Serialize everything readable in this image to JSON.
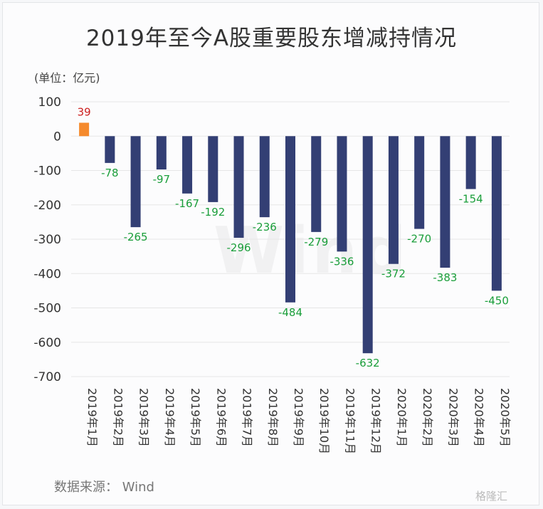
{
  "title": "2019年至今A股重要股东增减持情况",
  "unit_label": "(单位：亿元)",
  "source_label": "数据来源：   Wind",
  "watermark": "Wind",
  "brand": "格隆汇",
  "colors": {
    "positive": "#f58a2c",
    "negative": "#333f74",
    "positive_label": "#cc1f1f",
    "negative_label": "#1a9e3a",
    "grid": "#e6e6e6",
    "axis_text": "#333333"
  },
  "chart_data": {
    "type": "bar",
    "title": "2019年至今A股重要股东增减持情况",
    "ylabel": "(单位：亿元)",
    "ylim": [
      -700,
      100
    ],
    "yticks": [
      100,
      0,
      -100,
      -200,
      -300,
      -400,
      -500,
      -600,
      -700
    ],
    "grid": true,
    "categories": [
      "2019年1月",
      "2019年2月",
      "2019年3月",
      "2019年4月",
      "2019年5月",
      "2019年6月",
      "2019年7月",
      "2019年8月",
      "2019年9月",
      "2019年10月",
      "2019年11月",
      "2019年12月",
      "2020年1月",
      "2020年2月",
      "2020年3月",
      "2020年4月",
      "2020年5月"
    ],
    "values": [
      39,
      -78,
      -265,
      -97,
      -167,
      -192,
      -296,
      -236,
      -484,
      -279,
      -336,
      -632,
      -372,
      -270,
      -383,
      -154,
      -450
    ]
  }
}
